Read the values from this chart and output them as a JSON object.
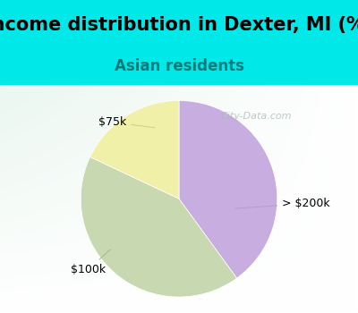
{
  "title": "Income distribution in Dexter, MI (%)",
  "subtitle": "Asian residents",
  "title_fontsize": 15,
  "subtitle_fontsize": 12,
  "title_color": "#000000",
  "subtitle_color": "#007a7a",
  "background_top": "#00e8e8",
  "background_chart": "#ffffff",
  "watermark": "City-Data.com",
  "slices": [
    {
      "label": "> $200k",
      "value": 40,
      "color": "#c8aee0"
    },
    {
      "label": "$100k",
      "value": 42,
      "color": "#c8d8b0"
    },
    {
      "label": "$75k",
      "value": 18,
      "color": "#f0f0a8"
    }
  ],
  "label_color": "#000000",
  "label_fontsize": 9,
  "startangle": 90,
  "figsize": [
    4.0,
    3.5
  ],
  "dpi": 100
}
